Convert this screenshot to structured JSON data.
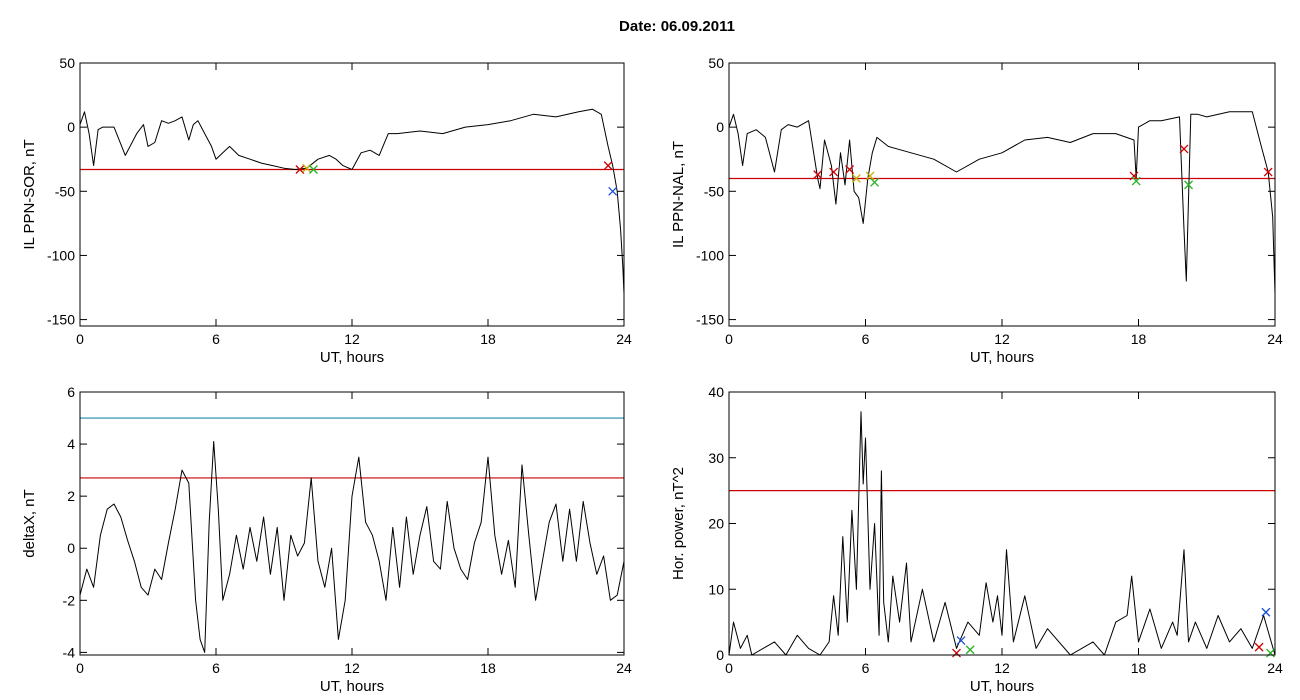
{
  "header": {
    "date_text": "Date:  06.09.2011"
  },
  "colors": {
    "trace": "#000000",
    "threshold_red": "#cc0000",
    "threshold_teal": "#1a8ba8",
    "marker_blue": "#1a4fd8",
    "marker_green": "#22b322",
    "marker_yellow": "#c9b000",
    "marker_red": "#cc0000"
  },
  "chart_data": [
    {
      "id": "ppn-sor",
      "type": "line",
      "title": "",
      "xlabel": "UT, hours",
      "ylabel": "IL PPN-SOR, nT",
      "xlim": [
        0,
        24
      ],
      "ylim": [
        -155,
        50
      ],
      "xticks": [
        0,
        6,
        12,
        18,
        24
      ],
      "yticks": [
        -150,
        -100,
        -50,
        0,
        50
      ],
      "grid": false,
      "series": [
        {
          "color": "#000000",
          "x": [
            0,
            0.2,
            0.4,
            0.6,
            0.8,
            1.0,
            1.5,
            2.0,
            2.5,
            2.8,
            3.0,
            3.3,
            3.6,
            3.9,
            4.2,
            4.5,
            4.8,
            5.0,
            5.2,
            5.5,
            5.8,
            6.0,
            6.3,
            6.6,
            7.0,
            7.5,
            8.0,
            8.5,
            9.0,
            9.5,
            10.0,
            10.5,
            11.0,
            11.3,
            11.6,
            12.0,
            12.4,
            12.8,
            13.2,
            13.6,
            14.0,
            15.0,
            16.0,
            17.0,
            18.0,
            19.0,
            20.0,
            21.0,
            22.0,
            22.6,
            23.0,
            23.3,
            23.5,
            23.7,
            23.85,
            23.95,
            24.0
          ],
          "y": [
            2,
            12,
            -5,
            -30,
            -2,
            0,
            0,
            -22,
            -5,
            2,
            -15,
            -12,
            5,
            3,
            5,
            8,
            -10,
            2,
            5,
            -5,
            -15,
            -25,
            -20,
            -15,
            -22,
            -25,
            -28,
            -30,
            -32,
            -33,
            -32,
            -25,
            -22,
            -25,
            -30,
            -33,
            -20,
            -18,
            -22,
            -5,
            -5,
            -3,
            -5,
            0,
            2,
            5,
            10,
            8,
            12,
            14,
            10,
            -15,
            -30,
            -50,
            -80,
            -110,
            -130
          ]
        }
      ],
      "hlines": [
        {
          "y": -33,
          "color": "#cc0000"
        }
      ],
      "markers": [
        {
          "x": 9.7,
          "y": -33,
          "color": "#cc0000"
        },
        {
          "x": 10.0,
          "y": -32,
          "color": "#c9b000"
        },
        {
          "x": 10.3,
          "y": -33,
          "color": "#22b322"
        },
        {
          "x": 23.3,
          "y": -30,
          "color": "#cc0000"
        },
        {
          "x": 23.5,
          "y": -50,
          "color": "#1a4fd8"
        }
      ]
    },
    {
      "id": "ppn-nal",
      "type": "line",
      "title": "",
      "xlabel": "UT, hours",
      "ylabel": "IL PPN-NAL, nT",
      "xlim": [
        0,
        24
      ],
      "ylim": [
        -155,
        50
      ],
      "xticks": [
        0,
        6,
        12,
        18,
        24
      ],
      "yticks": [
        -150,
        -100,
        -50,
        0,
        50
      ],
      "grid": false,
      "series": [
        {
          "color": "#000000",
          "x": [
            0,
            0.2,
            0.4,
            0.6,
            0.8,
            1.2,
            1.6,
            2.0,
            2.3,
            2.6,
            3.0,
            3.5,
            3.9,
            4.0,
            4.2,
            4.5,
            4.7,
            4.9,
            5.1,
            5.3,
            5.5,
            5.7,
            5.9,
            6.1,
            6.3,
            6.5,
            7.0,
            8.0,
            9.0,
            10.0,
            11.0,
            12.0,
            13.0,
            14.0,
            15.0,
            16.0,
            17.0,
            17.8,
            17.9,
            18.0,
            18.5,
            19.0,
            19.8,
            20.0,
            20.1,
            20.3,
            20.6,
            21.0,
            22.0,
            23.0,
            23.4,
            23.7,
            23.9,
            24.0
          ],
          "y": [
            0,
            10,
            -5,
            -30,
            -5,
            -2,
            -8,
            -35,
            -2,
            2,
            0,
            5,
            -40,
            -48,
            -10,
            -30,
            -60,
            -20,
            -45,
            -10,
            -50,
            -55,
            -75,
            -40,
            -20,
            -8,
            -15,
            -20,
            -25,
            -35,
            -25,
            -20,
            -10,
            -8,
            -12,
            -5,
            -5,
            -10,
            -40,
            0,
            5,
            5,
            8,
            -80,
            -120,
            10,
            10,
            8,
            12,
            12,
            -15,
            -35,
            -70,
            -130
          ]
        }
      ],
      "hlines": [
        {
          "y": -40,
          "color": "#cc0000"
        }
      ],
      "markers": [
        {
          "x": 3.9,
          "y": -37,
          "color": "#cc0000"
        },
        {
          "x": 4.6,
          "y": -35,
          "color": "#cc0000"
        },
        {
          "x": 5.3,
          "y": -33,
          "color": "#cc0000"
        },
        {
          "x": 5.6,
          "y": -40,
          "color": "#c9b000"
        },
        {
          "x": 6.2,
          "y": -38,
          "color": "#c9b000"
        },
        {
          "x": 6.4,
          "y": -43,
          "color": "#22b322"
        },
        {
          "x": 17.8,
          "y": -38,
          "color": "#cc0000"
        },
        {
          "x": 17.9,
          "y": -42,
          "color": "#22b322"
        },
        {
          "x": 20.0,
          "y": -17,
          "color": "#cc0000"
        },
        {
          "x": 20.2,
          "y": -45,
          "color": "#22b322"
        },
        {
          "x": 23.7,
          "y": -35,
          "color": "#cc0000"
        }
      ]
    },
    {
      "id": "deltax",
      "type": "line",
      "title": "",
      "xlabel": "UT, hours",
      "ylabel": "deltaX, nT",
      "xlim": [
        0,
        24
      ],
      "ylim": [
        -4.1,
        6
      ],
      "xticks": [
        0,
        6,
        12,
        18,
        24
      ],
      "yticks": [
        -4,
        -2,
        0,
        2,
        4,
        6
      ],
      "grid": false,
      "series": [
        {
          "color": "#000000",
          "x": [
            0,
            0.3,
            0.6,
            0.9,
            1.2,
            1.5,
            1.8,
            2.1,
            2.4,
            2.7,
            3.0,
            3.3,
            3.6,
            3.9,
            4.2,
            4.5,
            4.8,
            5.1,
            5.3,
            5.5,
            5.7,
            5.9,
            6.1,
            6.3,
            6.6,
            6.9,
            7.2,
            7.5,
            7.8,
            8.1,
            8.4,
            8.7,
            9.0,
            9.3,
            9.6,
            9.9,
            10.2,
            10.5,
            10.8,
            11.1,
            11.4,
            11.7,
            12.0,
            12.3,
            12.6,
            12.9,
            13.2,
            13.5,
            13.8,
            14.1,
            14.4,
            14.7,
            15.0,
            15.3,
            15.6,
            15.9,
            16.2,
            16.5,
            16.8,
            17.1,
            17.4,
            17.7,
            18.0,
            18.3,
            18.6,
            18.9,
            19.2,
            19.5,
            19.8,
            20.1,
            20.4,
            20.7,
            21.0,
            21.3,
            21.6,
            21.9,
            22.2,
            22.5,
            22.8,
            23.1,
            23.4,
            23.7,
            24.0
          ],
          "y": [
            -1.8,
            -0.8,
            -1.5,
            0.5,
            1.5,
            1.7,
            1.2,
            0.3,
            -0.5,
            -1.5,
            -1.8,
            -0.8,
            -1.2,
            0.2,
            1.5,
            3.0,
            2.5,
            -2.0,
            -3.5,
            -4.0,
            1.0,
            4.1,
            1.5,
            -2.0,
            -1.0,
            0.5,
            -0.8,
            0.8,
            -0.5,
            1.2,
            -1.0,
            0.8,
            -2.0,
            0.5,
            -0.3,
            0.2,
            2.7,
            -0.5,
            -1.5,
            0.0,
            -3.5,
            -2.0,
            2.0,
            3.5,
            1.0,
            0.5,
            -0.5,
            -2.0,
            0.8,
            -1.5,
            1.2,
            -1.0,
            0.5,
            1.6,
            -0.5,
            -0.8,
            1.8,
            0.0,
            -0.8,
            -1.2,
            0.2,
            1.0,
            3.5,
            0.5,
            -1.0,
            0.3,
            -1.5,
            3.2,
            0.5,
            -2.0,
            -0.5,
            1.0,
            1.7,
            -0.5,
            1.5,
            -0.5,
            1.8,
            0.2,
            -1.0,
            -0.3,
            -2.0,
            -1.8,
            -0.5
          ]
        }
      ],
      "hlines": [
        {
          "y": 5.0,
          "color": "#1a8ba8"
        },
        {
          "y": 2.7,
          "color": "#cc0000"
        }
      ],
      "markers": []
    },
    {
      "id": "hor-power",
      "type": "line",
      "title": "",
      "xlabel": "UT, hours",
      "ylabel": "Hor. power, nT^2",
      "xlim": [
        0,
        24
      ],
      "ylim": [
        0,
        40
      ],
      "xticks": [
        0,
        6,
        12,
        18,
        24
      ],
      "yticks": [
        0,
        10,
        20,
        30,
        40
      ],
      "grid": false,
      "series": [
        {
          "color": "#000000",
          "x": [
            0,
            0.2,
            0.5,
            0.8,
            1.0,
            1.5,
            2.0,
            2.5,
            3.0,
            3.5,
            4.0,
            4.4,
            4.6,
            4.8,
            5.0,
            5.2,
            5.4,
            5.6,
            5.8,
            5.9,
            6.0,
            6.2,
            6.4,
            6.6,
            6.7,
            6.8,
            7.0,
            7.2,
            7.5,
            7.8,
            8.0,
            8.5,
            9.0,
            9.5,
            10.0,
            10.5,
            11.0,
            11.3,
            11.6,
            11.8,
            12.0,
            12.2,
            12.5,
            13.0,
            13.5,
            14.0,
            15.0,
            16.0,
            16.5,
            17.0,
            17.5,
            17.7,
            18.0,
            18.5,
            19.0,
            19.5,
            19.7,
            20.0,
            20.2,
            20.5,
            21.0,
            21.5,
            22.0,
            22.5,
            23.0,
            23.5,
            24.0
          ],
          "y": [
            0,
            5,
            1,
            3,
            0,
            1,
            2,
            0,
            3,
            1,
            0,
            2,
            9,
            3,
            18,
            5,
            22,
            10,
            37,
            26,
            33,
            10,
            20,
            3,
            28,
            8,
            2,
            12,
            5,
            14,
            2,
            10,
            2,
            8,
            1,
            5,
            3,
            11,
            5,
            9,
            3,
            16,
            2,
            9,
            1,
            4,
            0,
            2,
            0,
            5,
            6,
            12,
            2,
            7,
            1,
            5,
            3,
            16,
            2,
            5,
            1,
            6,
            2,
            4,
            1,
            6,
            0
          ]
        }
      ],
      "hlines": [
        {
          "y": 25,
          "color": "#cc0000"
        }
      ],
      "markers": [
        {
          "x": 10.2,
          "y": 2.2,
          "color": "#1a4fd8"
        },
        {
          "x": 10.6,
          "y": 0.8,
          "color": "#22b322"
        },
        {
          "x": 10.0,
          "y": 0.3,
          "color": "#cc0000"
        },
        {
          "x": 23.6,
          "y": 6.5,
          "color": "#1a4fd8"
        },
        {
          "x": 23.3,
          "y": 1.2,
          "color": "#cc0000"
        },
        {
          "x": 23.8,
          "y": 0.3,
          "color": "#22b322"
        }
      ]
    }
  ]
}
